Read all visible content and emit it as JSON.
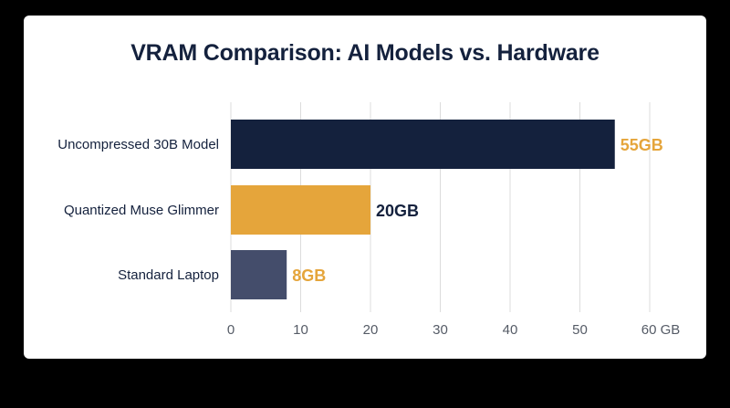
{
  "colors": {
    "background": "#000000",
    "card": "#ffffff",
    "title": "#14213d",
    "grid": "#dcdcdc",
    "tick_text": "#555b66"
  },
  "chart_data": {
    "type": "bar",
    "orientation": "horizontal",
    "title": "VRAM Comparison: AI Models vs. Hardware",
    "categories": [
      "Uncompressed 30B Model",
      "Quantized Muse Glimmer",
      "Standard Laptop"
    ],
    "values": [
      55,
      20,
      8
    ],
    "value_labels": [
      "55GB",
      "20GB",
      "8GB"
    ],
    "bar_colors": [
      "#14213d",
      "#e5a53b",
      "#444d6b"
    ],
    "value_label_colors": [
      "#e5a53b",
      "#14213d",
      "#e5a53b"
    ],
    "xlim": [
      0,
      60
    ],
    "xticks": [
      0,
      10,
      20,
      30,
      40,
      50,
      60
    ],
    "xtick_labels": [
      "0",
      "10",
      "20",
      "30",
      "40",
      "50",
      "60 GB"
    ],
    "grid": "vertical",
    "legend": "none"
  }
}
